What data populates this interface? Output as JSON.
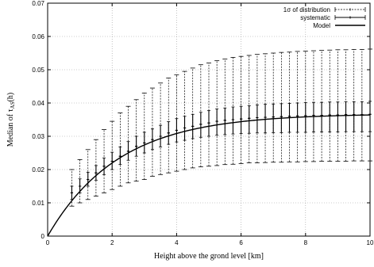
{
  "chart_data": {
    "type": "line",
    "xlabel": "Height above the grond level [km]",
    "ylabel_main": "Median of τ",
    "ylabel_sub": "AS",
    "ylabel_suffix": "(h)",
    "xlim": [
      0,
      10
    ],
    "ylim": [
      0,
      0.07
    ],
    "xticks": [
      0,
      2,
      4,
      6,
      8,
      10
    ],
    "yticks": [
      0,
      0.01,
      0.02,
      0.03,
      0.04,
      0.05,
      0.06,
      0.07
    ],
    "xtick_labels": [
      "0",
      "2",
      "4",
      "6",
      "8",
      "10"
    ],
    "ytick_labels": [
      "0",
      "0.01",
      "0.02",
      "0.03",
      "0.04",
      "0.05",
      "0.06",
      "0.07"
    ],
    "grid": true,
    "legend_position": "top-right",
    "model": {
      "name": "Model",
      "asymptote": 0.0368,
      "scale_km": 2.2
    },
    "series": [
      {
        "name": "1σ of distribution",
        "x": [
          0.75,
          1.0,
          1.25,
          1.5,
          1.75,
          2.0,
          2.25,
          2.5,
          2.75,
          3.0,
          3.25,
          3.5,
          3.75,
          4.0,
          4.25,
          4.5,
          4.75,
          5.0,
          5.25,
          5.5,
          5.75,
          6.0,
          6.25,
          6.5,
          6.75,
          7.0,
          7.25,
          7.5,
          7.75,
          8.0,
          8.25,
          8.5,
          8.75,
          9.0,
          9.25,
          9.5,
          9.75,
          10.0
        ],
        "y": [
          0.013,
          0.015,
          0.017,
          0.019,
          0.021,
          0.0225,
          0.024,
          0.0255,
          0.027,
          0.028,
          0.029,
          0.03,
          0.031,
          0.0318,
          0.0325,
          0.033,
          0.0336,
          0.034,
          0.0345,
          0.0348,
          0.035,
          0.0352,
          0.0354,
          0.0356,
          0.0357,
          0.0358,
          0.0359,
          0.036,
          0.0361,
          0.0362,
          0.0363,
          0.0363,
          0.0364,
          0.0364,
          0.0365,
          0.0365,
          0.0365,
          0.0366
        ],
        "ylow": [
          0.009,
          0.01,
          0.011,
          0.012,
          0.013,
          0.014,
          0.015,
          0.016,
          0.0165,
          0.017,
          0.018,
          0.0185,
          0.019,
          0.0195,
          0.02,
          0.0205,
          0.0208,
          0.021,
          0.0212,
          0.0215,
          0.0216,
          0.0218,
          0.022,
          0.022,
          0.0221,
          0.0222,
          0.0222,
          0.0223,
          0.0223,
          0.0224,
          0.0224,
          0.0225,
          0.0225,
          0.0225,
          0.0225,
          0.0226,
          0.0226,
          0.0226
        ],
        "yhigh": [
          0.02,
          0.023,
          0.026,
          0.029,
          0.032,
          0.0345,
          0.037,
          0.039,
          0.041,
          0.043,
          0.0445,
          0.046,
          0.0475,
          0.0485,
          0.0495,
          0.0505,
          0.0515,
          0.052,
          0.0527,
          0.0532,
          0.0537,
          0.054,
          0.0543,
          0.0546,
          0.0548,
          0.055,
          0.0552,
          0.0553,
          0.0555,
          0.0556,
          0.0557,
          0.0558,
          0.0559,
          0.056,
          0.056,
          0.0561,
          0.0561,
          0.0562
        ]
      },
      {
        "name": "systematic",
        "x": [
          0.75,
          1.0,
          1.25,
          1.5,
          1.75,
          2.0,
          2.25,
          2.5,
          2.75,
          3.0,
          3.25,
          3.5,
          3.75,
          4.0,
          4.25,
          4.5,
          4.75,
          5.0,
          5.25,
          5.5,
          5.75,
          6.0,
          6.25,
          6.5,
          6.75,
          7.0,
          7.25,
          7.5,
          7.75,
          8.0,
          8.25,
          8.5,
          8.75,
          9.0,
          9.25,
          9.5,
          9.75,
          10.0
        ],
        "y": [
          0.013,
          0.015,
          0.017,
          0.019,
          0.021,
          0.0225,
          0.024,
          0.0255,
          0.027,
          0.028,
          0.029,
          0.03,
          0.031,
          0.0318,
          0.0325,
          0.033,
          0.0336,
          0.034,
          0.0345,
          0.0348,
          0.035,
          0.0352,
          0.0354,
          0.0356,
          0.0357,
          0.0358,
          0.0359,
          0.036,
          0.0361,
          0.0362,
          0.0363,
          0.0363,
          0.0364,
          0.0364,
          0.0365,
          0.0365,
          0.0365,
          0.0366
        ],
        "ylow": [
          0.011,
          0.013,
          0.015,
          0.0168,
          0.0185,
          0.02,
          0.0215,
          0.0228,
          0.024,
          0.025,
          0.026,
          0.0268,
          0.0276,
          0.0283,
          0.0288,
          0.0293,
          0.0297,
          0.03,
          0.0303,
          0.0305,
          0.0307,
          0.0308,
          0.0309,
          0.031,
          0.031,
          0.0311,
          0.0311,
          0.0312,
          0.0312,
          0.0312,
          0.0313,
          0.0313,
          0.0313,
          0.0313,
          0.0314,
          0.0314,
          0.0314,
          0.0314
        ],
        "yhigh": [
          0.015,
          0.0172,
          0.0192,
          0.0212,
          0.0235,
          0.0252,
          0.0268,
          0.0284,
          0.03,
          0.0312,
          0.0322,
          0.0333,
          0.0344,
          0.0353,
          0.036,
          0.0366,
          0.0372,
          0.0377,
          0.0382,
          0.0385,
          0.0388,
          0.039,
          0.0392,
          0.0394,
          0.0396,
          0.0397,
          0.0398,
          0.0399,
          0.04,
          0.0401,
          0.0402,
          0.0402,
          0.0403,
          0.0403,
          0.0404,
          0.0404,
          0.0404,
          0.0405
        ]
      }
    ]
  }
}
